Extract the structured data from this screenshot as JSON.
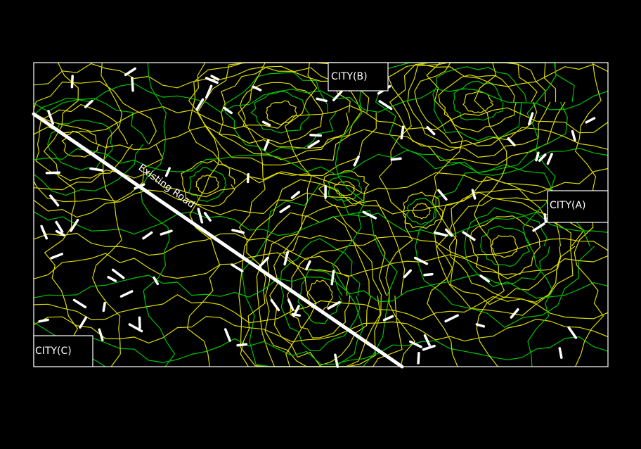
{
  "colors": {
    "background": "#000000",
    "frame": "#ffffff",
    "contour_major": "#00c400",
    "contour_minor": "#dcdc00",
    "road": "#ffffff",
    "tick": "#ffffff",
    "label_text": "#ffffff"
  },
  "map": {
    "road": {
      "label": "Existing Road"
    },
    "cities": [
      {
        "id": "city-b",
        "label": "CITY(B)"
      },
      {
        "id": "city-a",
        "label": "CITY(A)"
      },
      {
        "id": "city-c",
        "label": "CITY(C)"
      }
    ]
  }
}
